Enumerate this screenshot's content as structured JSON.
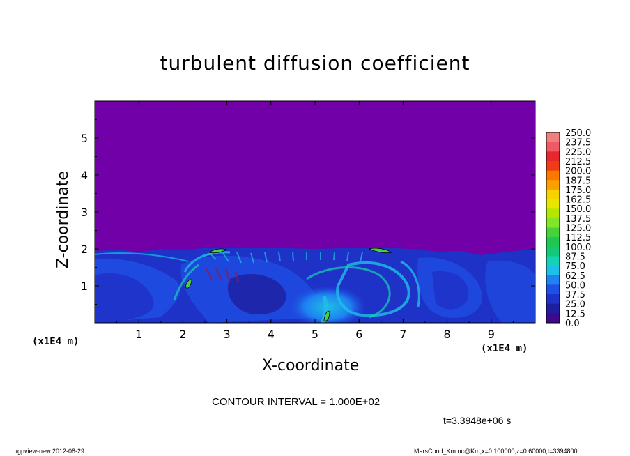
{
  "chart_data": {
    "type": "heatmap",
    "title": "turbulent diffusion coefficient",
    "xlabel": "X-coordinate",
    "ylabel": "Z-coordinate",
    "x_unit": "(x1E4 m)",
    "xlim": [
      0,
      10
    ],
    "ylim": [
      0,
      6
    ],
    "x_ticks": [
      "1",
      "2",
      "3",
      "4",
      "5",
      "6",
      "7",
      "8",
      "9"
    ],
    "y_ticks": [
      "1",
      "2",
      "3",
      "4",
      "5"
    ],
    "colorbar": {
      "labels": [
        "250.0",
        "237.5",
        "225.0",
        "212.5",
        "200.0",
        "187.5",
        "175.0",
        "162.5",
        "150.0",
        "137.5",
        "125.0",
        "112.5",
        "100.0",
        "87.5",
        "75.0",
        "62.5",
        "50.0",
        "37.5",
        "25.0",
        "12.5",
        "0.0"
      ],
      "colors": [
        "#f08080",
        "#f05a64",
        "#e6282d",
        "#f03c14",
        "#fa7800",
        "#fca000",
        "#f6d200",
        "#e6e600",
        "#b4e600",
        "#82e628",
        "#46d23c",
        "#1ec850",
        "#14c878",
        "#14d2b4",
        "#1ebee6",
        "#1e82f0",
        "#1e50e6",
        "#1e32c8",
        "#1e1ea0",
        "#3c0a8c"
      ]
    },
    "background_value_range": "0.0–12.5",
    "notes": [
      "CONTOUR INTERVAL = 1.000E+02"
    ]
  },
  "contour_interval": "CONTOUR INTERVAL = 1.000E+02",
  "time_label": "t=3.3948e+06 s",
  "footer_left": "./gpview-new  2012-08-29",
  "footer_right": "MarsCond_Km.nc@Km,x=0:100000,z=0:60000,t=3394800"
}
